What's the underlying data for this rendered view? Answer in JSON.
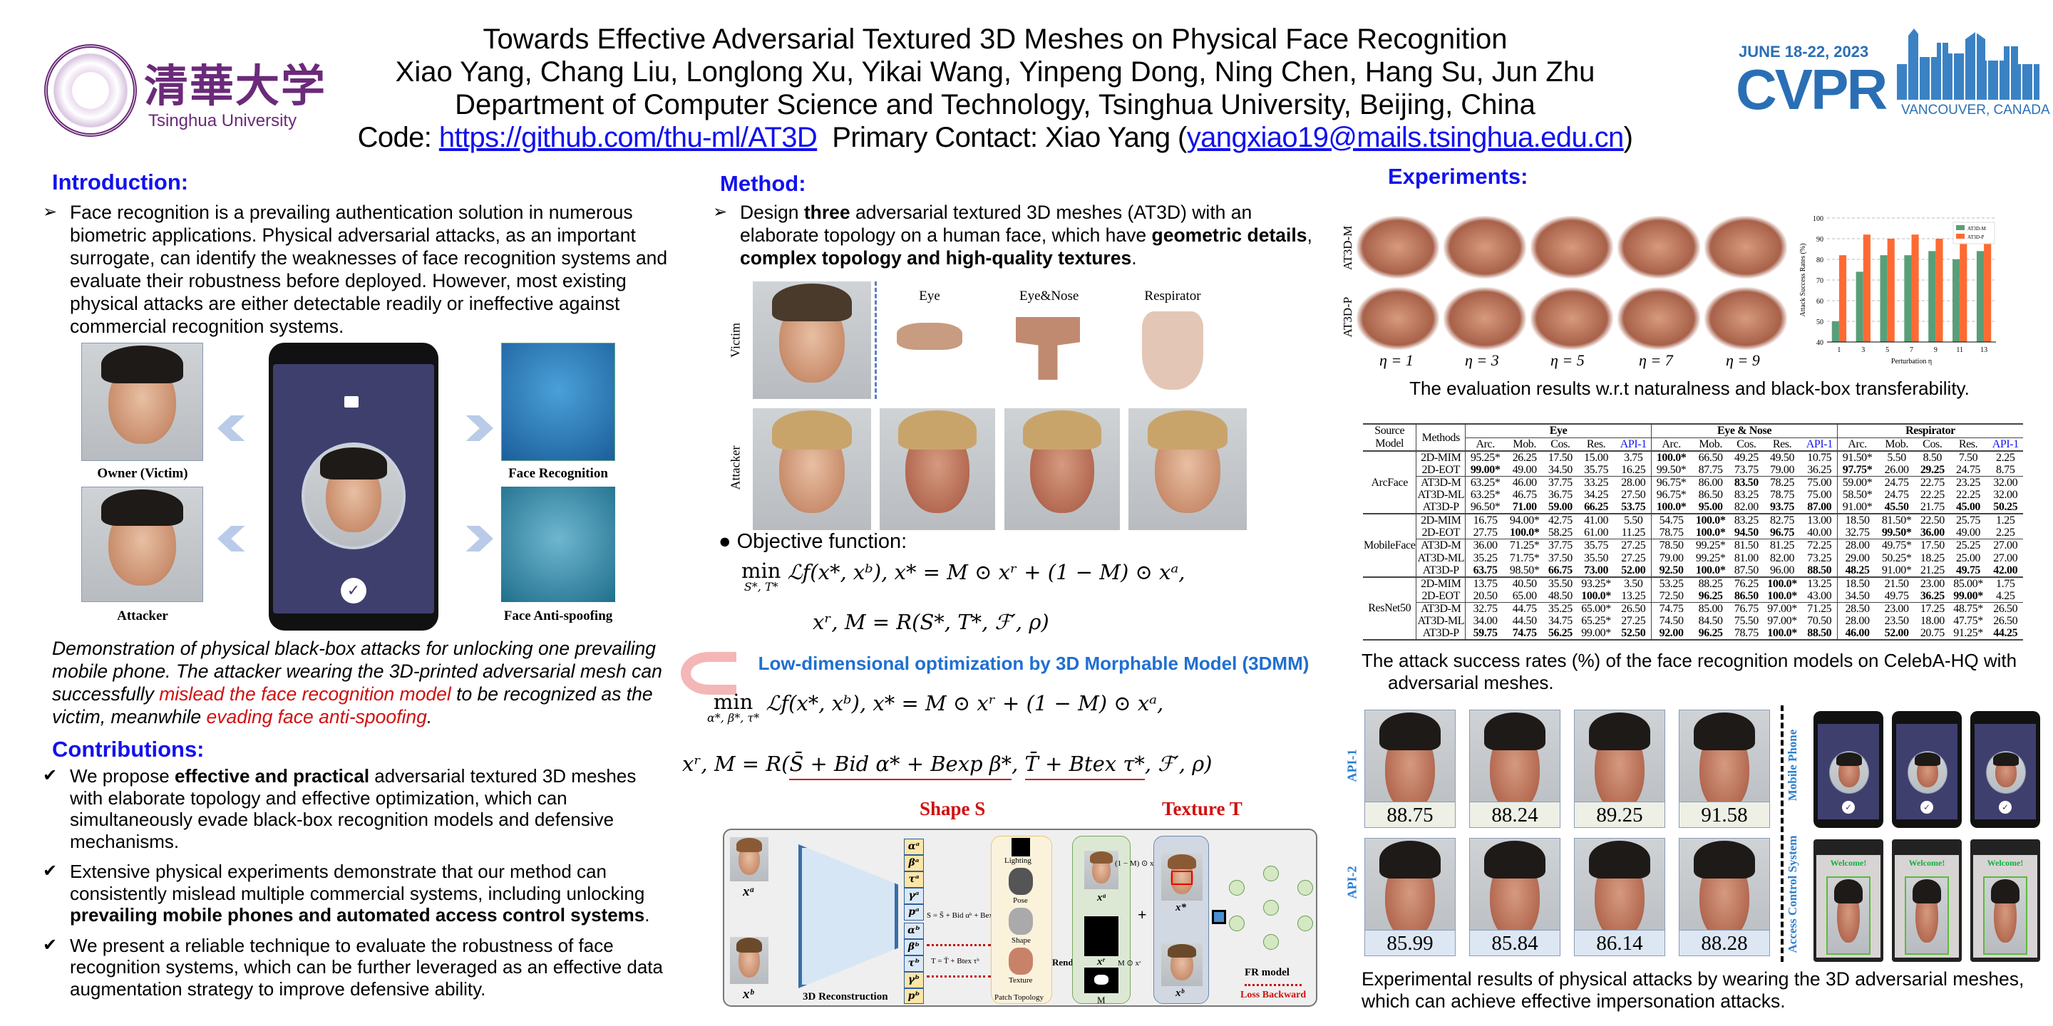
{
  "header": {
    "title": "Towards Effective Adversarial Textured 3D Meshes on Physical Face Recognition",
    "authors": "Xiao Yang, Chang Liu, Longlong Xu, Yikai Wang, Yinpeng Dong, Ning Chen, Hang Su, Jun Zhu",
    "affiliation": "Department of Computer Science and Technology, Tsinghua University, Beijing, China",
    "code_label": "Code: ",
    "code_url": "https://github.com/thu-ml/AT3D",
    "contact_label": "  Primary Contact: Xiao Yang (",
    "contact_email": "yangxiao19@mails.tsinghua.edu.cn",
    "contact_close": ")"
  },
  "logos": {
    "tsinghua_cn": "清華大学",
    "tsinghua_en": "Tsinghua University",
    "cvpr_dates": "JUNE 18-22, 2023",
    "cvpr_name": "CVPR",
    "cvpr_location": "VANCOUVER, CANADA"
  },
  "colors": {
    "heading": "#1212ee",
    "highlight_red": "#d01010",
    "method_blue": "#1f6fd0",
    "at3d_m": "#5a9e78",
    "at3d_p": "#ff6a33",
    "phone_screen": "#3f3f6e"
  },
  "introduction": {
    "heading": "Introduction:",
    "bullet": "Face recognition is a prevailing authentication solution in numerous biometric applications. Physical adversarial attacks, as an important surrogate, can identify the weaknesses of face recognition systems and evaluate their robustness before deployed. However, most existing physical attacks are either detectable readily or ineffective against commercial recognition systems.",
    "figure": {
      "owner_label": "Owner (Victim)",
      "attacker_label": "Attacker",
      "face_recognition_label": "Face Recognition",
      "anti_spoofing_label": "Face Anti-spoofing"
    },
    "caption": {
      "part1": "Demonstration of physical black-box attacks for unlocking one prevailing mobile phone. The attacker wearing the 3D-printed adversarial mesh can successfully ",
      "red1": "mislead the face recognition model",
      "part2": " to be recognized as the victim, meanwhile ",
      "red2": "evading face anti-spoofing",
      "part3": "."
    }
  },
  "contributions": {
    "heading": "Contributions:",
    "items": [
      {
        "a": "We propose ",
        "b": "effective and practical",
        "c": " adversarial textured 3D meshes with elaborate topology and effective optimization, which can simultaneously evade black-box recognition models and defensive mechanisms."
      },
      {
        "a": "Extensive physical experiments demonstrate that our method can consistently mislead multiple commercial systems, including unlocking ",
        "b": "prevailing mobile phones and automated access control systems",
        "c": "."
      },
      {
        "a": "We present a reliable technique to evaluate the robustness of face recognition systems, which can be further leveraged as an effective data augmentation strategy to improve defensive ability.",
        "b": "",
        "c": ""
      }
    ]
  },
  "method": {
    "heading": "Method:",
    "bullet": {
      "a": "Design ",
      "b": "three",
      "c": " adversarial textured 3D meshes (AT3D) with an elaborate topology on a human face, which have ",
      "d": "geometric details",
      "e": ", ",
      "f": "complex topology and high-quality textures",
      "g": "."
    },
    "grid": {
      "row_victim": "Victim",
      "row_attacker": "Attacker",
      "cols": [
        "Eye",
        "Eye&Nose",
        "Respirator"
      ]
    },
    "objective_label": "Objective function:",
    "f1": {
      "op": "min",
      "sub": "S*, T*",
      "body": " ℒf(x*, xᵇ),   x* = M ⊙ xʳ + (1 − M) ⊙ xᵃ,"
    },
    "f2": "xʳ, M = R(S*, T*, ℱ′, ρ)",
    "optimization_label": "Low-dimensional optimization by 3D Morphable Model (3DMM)",
    "f3": {
      "op": "min",
      "sub": "α*, β*, τ*",
      "body": " ℒf(x*, xᵇ),   x* = M ⊙ xʳ + (1 − M) ⊙ xᵃ,"
    },
    "f4": {
      "prefix": "xʳ, M = R(",
      "shape": "S̄ + Bid α* + Bexp β*",
      "mid": ", ",
      "texture": "T̄ + Btex τ*",
      "suffix": ", ℱ′, ρ)"
    },
    "shape_label": "Shape S",
    "texture_label": "Texture T",
    "diagram": {
      "xa": "xᵃ",
      "xb": "xᵇ",
      "recon": "3D Reconstruction",
      "params_a": [
        "αᵃ",
        "βᵃ",
        "τᵃ",
        "γᵃ",
        "pᵃ"
      ],
      "params_b": [
        "αᵇ",
        "βᵇ",
        "τᵇ",
        "γᵇ",
        "pᵇ"
      ],
      "lighting": "Lighting",
      "pose": "Pose",
      "shape": "Shape",
      "texture": "Texture",
      "patch": "Patch Topology",
      "shape_eq": "S = S̄ + Bid αᵇ + Bexp βᵇ",
      "texture_eq": "T = T̄ + Btex τᵇ",
      "render": "Render",
      "xr": "xʳ",
      "mask": "M",
      "masked_a": "(1 − M) ⊙ xᵃ",
      "masked_r": "M ⊙ xʳ",
      "plus": "+",
      "xstar": "x*",
      "fr_model": "FR model",
      "loss": "Loss Backward"
    }
  },
  "experiments": {
    "heading": "Experiments:",
    "renders": {
      "rows": [
        "AT3D-M",
        "AT3D-P"
      ],
      "etas": [
        "η = 1",
        "η = 3",
        "η = 5",
        "η = 7",
        "η = 9"
      ]
    },
    "caption1": "The evaluation results w.r.t naturalness and black-box transferability.",
    "table": {
      "source_header": [
        "Source",
        "Model"
      ],
      "methods_header": "Methods",
      "groups": [
        "Eye",
        "Eye & Nose",
        "Respirator"
      ],
      "columns": [
        "Arc.",
        "Mob.",
        "Cos.",
        "Res.",
        "API-1"
      ],
      "blocks": [
        {
          "source": "ArcFace",
          "rows": [
            {
              "method": "2D-MIM",
              "values": [
                "95.25*",
                "26.25",
                "17.50",
                "15.00",
                "3.75",
                "100.0*",
                "66.50",
                "49.25",
                "49.50",
                "10.75",
                "91.50*",
                "5.50",
                "8.50",
                "7.50",
                "2.25"
              ],
              "bold": [
                5
              ]
            },
            {
              "method": "2D-EOT",
              "values": [
                "99.00*",
                "49.00",
                "34.50",
                "35.75",
                "16.25",
                "99.50*",
                "87.75",
                "73.75",
                "79.00",
                "36.25",
                "97.75*",
                "26.00",
                "29.25",
                "24.75",
                "8.75"
              ],
              "bold": [
                0,
                10,
                12
              ]
            },
            {
              "method": "AT3D-M",
              "values": [
                "63.25*",
                "46.00",
                "37.75",
                "33.25",
                "28.00",
                "96.75*",
                "86.00",
                "83.50",
                "78.25",
                "75.00",
                "59.00*",
                "24.75",
                "22.75",
                "23.25",
                "32.00"
              ],
              "bold": [
                7
              ]
            },
            {
              "method": "AT3D-ML",
              "values": [
                "63.25*",
                "46.75",
                "36.75",
                "34.25",
                "27.50",
                "96.75*",
                "86.50",
                "83.25",
                "78.75",
                "75.00",
                "58.50*",
                "24.75",
                "22.25",
                "22.25",
                "32.00"
              ],
              "bold": []
            },
            {
              "method": "AT3D-P",
              "values": [
                "96.50*",
                "71.00",
                "59.00",
                "66.25",
                "53.75",
                "100.0*",
                "95.00",
                "82.00",
                "93.75",
                "87.00",
                "91.00*",
                "45.50",
                "21.75",
                "45.00",
                "50.25"
              ],
              "bold": [
                1,
                2,
                3,
                4,
                5,
                6,
                8,
                9,
                11,
                13,
                14
              ]
            }
          ]
        },
        {
          "source": "MobileFace",
          "rows": [
            {
              "method": "2D-MIM",
              "values": [
                "16.75",
                "94.00*",
                "42.75",
                "41.00",
                "5.50",
                "54.75",
                "100.0*",
                "83.25",
                "82.75",
                "13.00",
                "18.50",
                "81.50*",
                "22.50",
                "25.75",
                "1.25"
              ],
              "bold": [
                6
              ]
            },
            {
              "method": "2D-EOT",
              "values": [
                "27.75",
                "100.0*",
                "58.25",
                "61.00",
                "11.25",
                "78.75",
                "100.0*",
                "94.50",
                "96.75",
                "40.00",
                "32.75",
                "99.50*",
                "36.00",
                "49.00",
                "2.25"
              ],
              "bold": [
                1,
                6,
                7,
                8,
                11,
                12
              ]
            },
            {
              "method": "AT3D-M",
              "values": [
                "36.00",
                "71.25*",
                "37.75",
                "35.75",
                "27.25",
                "78.50",
                "99.25*",
                "81.50",
                "81.25",
                "72.25",
                "28.00",
                "49.75*",
                "17.50",
                "25.25",
                "27.00"
              ],
              "bold": []
            },
            {
              "method": "AT3D-ML",
              "values": [
                "35.25",
                "71.75*",
                "37.50",
                "35.50",
                "27.25",
                "79.00",
                "99.25*",
                "81.00",
                "82.00",
                "73.25",
                "29.00",
                "50.25*",
                "18.25",
                "25.00",
                "27.00"
              ],
              "bold": []
            },
            {
              "method": "AT3D-P",
              "values": [
                "63.75",
                "98.50*",
                "66.75",
                "73.00",
                "52.00",
                "92.50",
                "100.0*",
                "87.50",
                "96.00",
                "88.50",
                "48.25",
                "91.00*",
                "21.25",
                "49.75",
                "42.00"
              ],
              "bold": [
                0,
                2,
                3,
                4,
                5,
                6,
                9,
                10,
                13,
                14
              ]
            }
          ]
        },
        {
          "source": "ResNet50",
          "rows": [
            {
              "method": "2D-MIM",
              "values": [
                "13.75",
                "40.50",
                "35.50",
                "93.25*",
                "3.50",
                "53.25",
                "88.25",
                "76.25",
                "100.0*",
                "13.25",
                "18.50",
                "21.50",
                "23.00",
                "85.00*",
                "1.75"
              ],
              "bold": [
                8
              ]
            },
            {
              "method": "2D-EOT",
              "values": [
                "20.50",
                "65.00",
                "48.50",
                "100.0*",
                "13.25",
                "72.50",
                "96.25",
                "86.50",
                "100.0*",
                "43.00",
                "34.50",
                "49.75",
                "36.25",
                "99.00*",
                "4.25"
              ],
              "bold": [
                3,
                6,
                7,
                8,
                12,
                13
              ]
            },
            {
              "method": "AT3D-M",
              "values": [
                "32.75",
                "44.75",
                "35.25",
                "65.00*",
                "26.50",
                "74.75",
                "85.00",
                "76.75",
                "97.00*",
                "71.25",
                "28.50",
                "23.00",
                "17.25",
                "48.75*",
                "26.50"
              ],
              "bold": []
            },
            {
              "method": "AT3D-ML",
              "values": [
                "34.00",
                "44.50",
                "34.75",
                "65.25*",
                "27.25",
                "74.50",
                "84.50",
                "75.50",
                "97.00*",
                "70.50",
                "28.00",
                "23.50",
                "18.00",
                "47.75*",
                "26.50"
              ],
              "bold": []
            },
            {
              "method": "AT3D-P",
              "values": [
                "59.75",
                "74.75",
                "56.25",
                "99.00*",
                "52.50",
                "92.00",
                "96.25",
                "78.75",
                "100.0*",
                "88.50",
                "46.00",
                "52.00",
                "20.75",
                "91.25*",
                "44.25"
              ],
              "bold": [
                0,
                1,
                2,
                4,
                5,
                6,
                8,
                9,
                10,
                11,
                14
              ]
            }
          ]
        }
      ]
    },
    "caption2": "The attack success rates (%) of the face recognition models on CelebA-HQ with adversarial meshes.",
    "physical": {
      "row_labels": [
        "API-1",
        "API-2"
      ],
      "api1_scores": [
        "88.75",
        "88.24",
        "89.25",
        "91.58"
      ],
      "api2_scores": [
        "85.99",
        "85.84",
        "86.14",
        "88.28"
      ],
      "mobile_label": "Mobile Phone",
      "access_label": "Access Control System",
      "welcome": "Welcome!"
    },
    "caption3": "Experimental results of physical attacks by wearing the 3D adversarial meshes, which can achieve effective impersonation attacks."
  },
  "chart_data": {
    "type": "bar",
    "categories": [
      "1",
      "3",
      "5",
      "7",
      "9",
      "11",
      "13"
    ],
    "series": [
      {
        "name": "AT3D-M",
        "values": [
          50,
          74,
          82,
          82,
          84,
          80,
          84
        ]
      },
      {
        "name": "AT3D-P",
        "values": [
          82,
          92,
          90,
          92,
          90,
          90,
          92
        ]
      }
    ],
    "xlabel": "Perturbation η",
    "ylabel": "Attack Success Rates (%)",
    "ylim": [
      40,
      100
    ],
    "yticks": [
      40,
      50,
      60,
      70,
      80,
      90,
      100
    ],
    "grid": true,
    "legend": "top-right"
  }
}
